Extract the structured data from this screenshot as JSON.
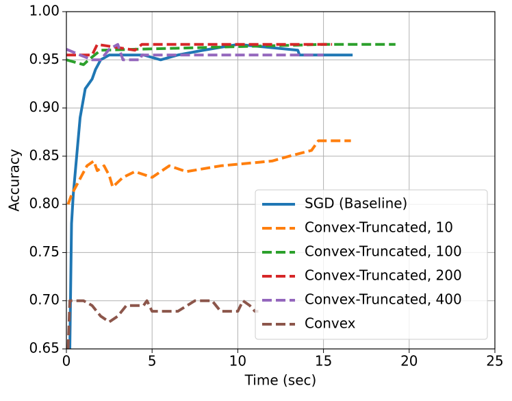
{
  "chart_data": {
    "type": "line",
    "xlabel": "Time (sec)",
    "ylabel": "Accuracy",
    "xlim": [
      0,
      25
    ],
    "ylim": [
      0.65,
      1.0
    ],
    "xticks": [
      0,
      5,
      10,
      15,
      20,
      25
    ],
    "yticks": [
      {
        "value": 0.65,
        "label": "0.65"
      },
      {
        "value": 0.7,
        "label": "0.70"
      },
      0.75,
      {
        "value": 0.8,
        "label": "0.80"
      },
      0.85,
      {
        "value": 0.9,
        "label": "0.90"
      },
      0.95,
      {
        "value": 1.0,
        "label": "1.00"
      }
    ],
    "grid": true,
    "legend": "lower right",
    "series": [
      {
        "name": "SGD (Baseline)",
        "color": "#1f77b4",
        "dashed": false,
        "x": [
          0.2,
          0.3,
          0.4,
          0.5,
          0.6,
          0.7,
          0.8,
          0.9,
          1.0,
          1.1,
          1.3,
          1.5,
          1.7,
          2.0,
          2.5,
          4.5,
          5.5,
          6.5,
          8,
          10,
          13.5,
          13.6,
          16.7
        ],
        "values": [
          0.65,
          0.78,
          0.81,
          0.83,
          0.85,
          0.87,
          0.89,
          0.9,
          0.91,
          0.92,
          0.925,
          0.93,
          0.94,
          0.95,
          0.955,
          0.955,
          0.95,
          0.955,
          0.96,
          0.966,
          0.96,
          0.955,
          0.955
        ]
      },
      {
        "name": "Convex-Truncated, 10",
        "color": "#ff7f0e",
        "dashed": true,
        "x": [
          0.1,
          0.3,
          0.6,
          0.9,
          1.2,
          1.6,
          1.8,
          2.2,
          2.5,
          2.7,
          3.0,
          3.3,
          4.0,
          5.0,
          5.5,
          6.0,
          7.0,
          9.0,
          12.0,
          13.0,
          14.3,
          14.7,
          16.6
        ],
        "values": [
          0.8,
          0.81,
          0.82,
          0.83,
          0.84,
          0.845,
          0.835,
          0.84,
          0.83,
          0.818,
          0.823,
          0.828,
          0.834,
          0.828,
          0.834,
          0.84,
          0.834,
          0.84,
          0.845,
          0.85,
          0.856,
          0.866,
          0.866
        ]
      },
      {
        "name": "Convex-Truncated, 100",
        "color": "#2ca02c",
        "dashed": true,
        "x": [
          0,
          1.0,
          1.3,
          2.0,
          15.0,
          19.2
        ],
        "values": [
          0.95,
          0.945,
          0.95,
          0.96,
          0.966,
          0.966
        ]
      },
      {
        "name": "Convex-Truncated, 200",
        "color": "#d62728",
        "dashed": true,
        "x": [
          0,
          1.5,
          1.8,
          4.0,
          4.4,
          15.5
        ],
        "values": [
          0.955,
          0.955,
          0.966,
          0.96,
          0.966,
          0.966
        ]
      },
      {
        "name": "Convex-Truncated, 400",
        "color": "#9467bd",
        "dashed": true,
        "x": [
          0,
          0.8,
          1.5,
          2.0,
          2.5,
          3.0,
          3.3,
          4.3,
          4.4,
          15.0
        ],
        "values": [
          0.961,
          0.955,
          0.95,
          0.95,
          0.961,
          0.966,
          0.95,
          0.95,
          0.955,
          0.955
        ]
      },
      {
        "name": "Convex",
        "color": "#8c564b",
        "dashed": true,
        "x": [
          0.1,
          0.2,
          1.0,
          1.5,
          2.0,
          2.5,
          3.0,
          3.5,
          4.5,
          4.7,
          5.0,
          6.5,
          7.5,
          8.5,
          9.0,
          10.0,
          10.3,
          10.7,
          11.0,
          11.2
        ],
        "values": [
          0.65,
          0.7,
          0.7,
          0.695,
          0.684,
          0.678,
          0.684,
          0.695,
          0.695,
          0.7,
          0.689,
          0.689,
          0.7,
          0.7,
          0.689,
          0.689,
          0.7,
          0.695,
          0.689,
          0.689
        ]
      }
    ]
  }
}
